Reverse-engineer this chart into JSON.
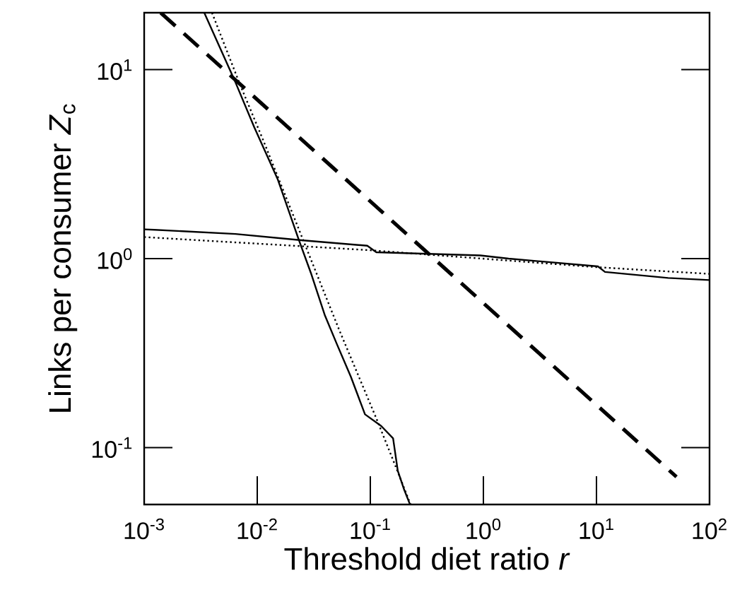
{
  "chart_data": {
    "type": "line",
    "xlabel": "Threshold diet ratio  *r*",
    "ylabel": "Links per consumer  *Z*$_{c}$",
    "log": "xy",
    "xlim": [
      0.001,
      100
    ],
    "ylim": [
      0.05,
      20
    ],
    "xticks": [
      {
        "value": 0.001,
        "label": "10$^{-3}$"
      },
      {
        "value": 0.01,
        "label": "10$^{-2}$"
      },
      {
        "value": 0.1,
        "label": "10$^{-1}$"
      },
      {
        "value": 1,
        "label": "10$^{0}$"
      },
      {
        "value": 10,
        "label": "10$^{1}$"
      },
      {
        "value": 100,
        "label": "10$^{2}$"
      }
    ],
    "yticks": [
      {
        "value": 0.1,
        "label": "10$^{-1}$"
      },
      {
        "value": 1,
        "label": "10$^{0}$"
      },
      {
        "value": 10,
        "label": "10$^{1}$"
      }
    ],
    "series": [
      {
        "color": "#000000",
        "line_style": "solid",
        "x": [
          0.0034,
          0.00643,
          0.00942,
          0.0152,
          0.0234,
          0.0298,
          0.0397,
          0.0505,
          0.0673,
          0.0897,
          0.125,
          0.159,
          0.175,
          0.199,
          0.223
        ],
        "values": [
          20,
          8.54,
          4.95,
          2.62,
          1.25,
          0.84,
          0.5,
          0.354,
          0.237,
          0.15,
          0.13,
          0.112,
          0.0753,
          0.06,
          0.0505
        ]
      },
      {
        "color": "#000000",
        "line_style": "dotted",
        "x": [
          0.00398,
          0.00706,
          0.0114,
          0.0246,
          0.053,
          0.114,
          0.167,
          0.227
        ],
        "values": [
          20,
          8.3,
          4.17,
          1.32,
          0.42,
          0.141,
          0.0798,
          0.05
        ]
      },
      {
        "color": "#000000",
        "line_style": "solid",
        "x": [
          0.001,
          0.00643,
          0.0246,
          0.094,
          0.113,
          0.94,
          1.67,
          10.3,
          11.9,
          43,
          100
        ],
        "values": [
          1.43,
          1.35,
          1.25,
          1.17,
          1.08,
          1.04,
          1.0,
          0.91,
          0.85,
          0.79,
          0.77
        ]
      },
      {
        "color": "#000000",
        "line_style": "dotted",
        "x": [
          0.001,
          0.094,
          10.3,
          100
        ],
        "values": [
          1.3,
          1.11,
          0.9,
          0.83
        ]
      },
      {
        "color": "#000000",
        "line_style": "dashed",
        "x": [
          0.0014,
          51
        ],
        "values": [
          20,
          0.07
        ]
      }
    ]
  }
}
